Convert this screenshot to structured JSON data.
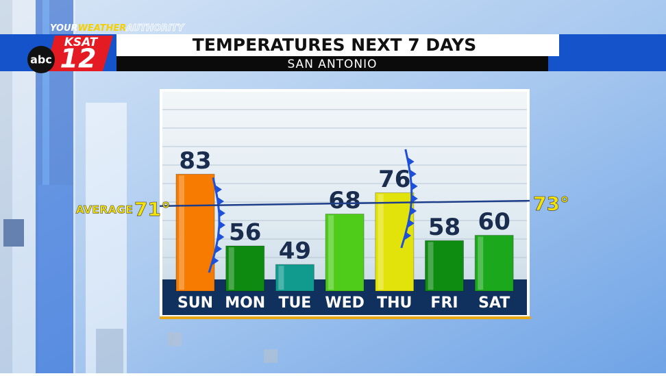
{
  "brand": {
    "tagline": [
      "YOUR",
      "WEATHER",
      "AUTHORITY"
    ],
    "station": "KSAT",
    "channel": "12",
    "network": "abc"
  },
  "chart_data": {
    "type": "bar",
    "title": "TEMPERATURES NEXT 7 DAYS",
    "subtitle": "SAN ANTONIO",
    "categories": [
      "SUN",
      "MON",
      "TUE",
      "WED",
      "THU",
      "FRI",
      "SAT"
    ],
    "values": [
      83,
      56,
      49,
      68,
      76,
      58,
      60
    ],
    "colors": [
      "#f77b00",
      "#0f8a10",
      "#119b8e",
      "#4fcc1a",
      "#e3e30c",
      "#0e8c12",
      "#1ca81c"
    ],
    "ylim": [
      39,
      114
    ],
    "average": {
      "label": "AVERAGE",
      "values": [
        71,
        73
      ],
      "value_labels": [
        "71°",
        "73°"
      ]
    }
  }
}
